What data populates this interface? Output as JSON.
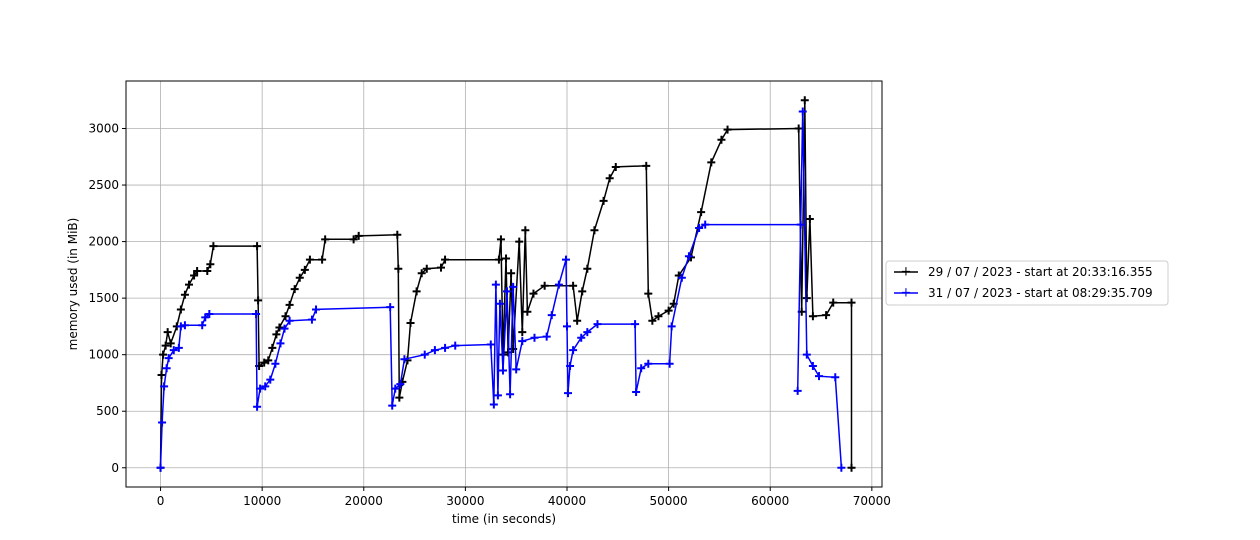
{
  "chart_data": {
    "type": "line",
    "title": "",
    "xlabel": "time (in seconds)",
    "ylabel": "memory used (in MiB)",
    "xlim": [
      -3400,
      71000
    ],
    "ylim": [
      -170,
      3420
    ],
    "xticks": [
      0,
      10000,
      20000,
      30000,
      40000,
      50000,
      60000,
      70000
    ],
    "yticks": [
      0,
      500,
      1000,
      1500,
      2000,
      2500,
      3000
    ],
    "grid": true,
    "marker": "+",
    "legend_position": "right",
    "series": [
      {
        "name": "29 / 07 / 2023 - start at 20:33:16.355",
        "color": "#000000",
        "points": [
          [
            0,
            0
          ],
          [
            100,
            820
          ],
          [
            250,
            1000
          ],
          [
            500,
            1080
          ],
          [
            700,
            1200
          ],
          [
            1000,
            1100
          ],
          [
            1600,
            1250
          ],
          [
            2000,
            1400
          ],
          [
            2400,
            1530
          ],
          [
            2800,
            1620
          ],
          [
            3300,
            1700
          ],
          [
            3600,
            1740
          ],
          [
            4600,
            1740
          ],
          [
            4900,
            1800
          ],
          [
            5200,
            1960
          ],
          [
            9500,
            1960
          ],
          [
            9600,
            1480
          ],
          [
            9700,
            900
          ],
          [
            10200,
            930
          ],
          [
            10600,
            950
          ],
          [
            11000,
            1060
          ],
          [
            11400,
            1180
          ],
          [
            11700,
            1240
          ],
          [
            12300,
            1340
          ],
          [
            12700,
            1440
          ],
          [
            13200,
            1580
          ],
          [
            13700,
            1680
          ],
          [
            14200,
            1750
          ],
          [
            14700,
            1840
          ],
          [
            15900,
            1840
          ],
          [
            16200,
            2020
          ],
          [
            19000,
            2020
          ],
          [
            19500,
            2050
          ],
          [
            23300,
            2060
          ],
          [
            23400,
            1760
          ],
          [
            23500,
            620
          ],
          [
            23800,
            760
          ],
          [
            24300,
            950
          ],
          [
            24600,
            1280
          ],
          [
            25200,
            1560
          ],
          [
            25700,
            1720
          ],
          [
            26200,
            1760
          ],
          [
            27600,
            1770
          ],
          [
            28000,
            1840
          ],
          [
            33300,
            1840
          ],
          [
            33500,
            2020
          ],
          [
            33700,
            1000
          ],
          [
            34000,
            1850
          ],
          [
            34200,
            1020
          ],
          [
            34500,
            1720
          ],
          [
            34700,
            1050
          ],
          [
            35300,
            2000
          ],
          [
            35600,
            1200
          ],
          [
            35900,
            2100
          ],
          [
            36100,
            1380
          ],
          [
            36700,
            1540
          ],
          [
            37800,
            1610
          ],
          [
            40600,
            1610
          ],
          [
            41000,
            1300
          ],
          [
            41500,
            1560
          ],
          [
            42000,
            1760
          ],
          [
            42700,
            2100
          ],
          [
            43600,
            2360
          ],
          [
            44200,
            2560
          ],
          [
            44800,
            2660
          ],
          [
            47800,
            2670
          ],
          [
            48000,
            1540
          ],
          [
            48400,
            1300
          ],
          [
            49000,
            1340
          ],
          [
            50000,
            1390
          ],
          [
            50500,
            1450
          ],
          [
            51000,
            1700
          ],
          [
            52200,
            1860
          ],
          [
            53200,
            2260
          ],
          [
            54200,
            2700
          ],
          [
            55200,
            2900
          ],
          [
            55800,
            2990
          ],
          [
            62800,
            3000
          ],
          [
            63100,
            1380
          ],
          [
            63400,
            3250
          ],
          [
            63600,
            1500
          ],
          [
            63900,
            2200
          ],
          [
            64200,
            1340
          ],
          [
            65500,
            1350
          ],
          [
            66200,
            1460
          ],
          [
            68000,
            1460
          ],
          [
            68000,
            0
          ]
        ]
      },
      {
        "name": "31 / 07 / 2023 - start at 08:29:35.709",
        "color": "#0000ff",
        "points": [
          [
            0,
            0
          ],
          [
            150,
            400
          ],
          [
            350,
            720
          ],
          [
            600,
            880
          ],
          [
            800,
            970
          ],
          [
            1300,
            1040
          ],
          [
            1800,
            1060
          ],
          [
            2000,
            1250
          ],
          [
            2400,
            1260
          ],
          [
            4100,
            1260
          ],
          [
            4400,
            1330
          ],
          [
            4800,
            1360
          ],
          [
            9400,
            1360
          ],
          [
            9500,
            540
          ],
          [
            9800,
            700
          ],
          [
            10300,
            720
          ],
          [
            10800,
            780
          ],
          [
            11300,
            920
          ],
          [
            11800,
            1100
          ],
          [
            12200,
            1230
          ],
          [
            12700,
            1300
          ],
          [
            14900,
            1310
          ],
          [
            15300,
            1400
          ],
          [
            22600,
            1420
          ],
          [
            22800,
            550
          ],
          [
            23100,
            700
          ],
          [
            23600,
            740
          ],
          [
            24000,
            960
          ],
          [
            26000,
            1000
          ],
          [
            27000,
            1040
          ],
          [
            28000,
            1060
          ],
          [
            29000,
            1080
          ],
          [
            32500,
            1090
          ],
          [
            32800,
            560
          ],
          [
            33000,
            1620
          ],
          [
            33200,
            640
          ],
          [
            33400,
            1450
          ],
          [
            33700,
            860
          ],
          [
            34100,
            1560
          ],
          [
            34400,
            650
          ],
          [
            34700,
            1600
          ],
          [
            35000,
            870
          ],
          [
            35600,
            1120
          ],
          [
            36800,
            1150
          ],
          [
            38000,
            1160
          ],
          [
            38500,
            1350
          ],
          [
            39200,
            1620
          ],
          [
            39900,
            1840
          ],
          [
            40000,
            1250
          ],
          [
            40100,
            660
          ],
          [
            40300,
            900
          ],
          [
            40600,
            1040
          ],
          [
            41400,
            1150
          ],
          [
            42000,
            1200
          ],
          [
            43000,
            1270
          ],
          [
            46700,
            1270
          ],
          [
            46800,
            670
          ],
          [
            47300,
            880
          ],
          [
            48000,
            920
          ],
          [
            50100,
            920
          ],
          [
            50300,
            1250
          ],
          [
            51300,
            1680
          ],
          [
            52000,
            1870
          ],
          [
            53000,
            2120
          ],
          [
            53600,
            2150
          ],
          [
            63000,
            2150
          ],
          [
            62700,
            680
          ],
          [
            63200,
            3150
          ],
          [
            63600,
            1000
          ],
          [
            64200,
            900
          ],
          [
            64800,
            810
          ],
          [
            66400,
            800
          ],
          [
            67000,
            0
          ]
        ]
      }
    ]
  }
}
